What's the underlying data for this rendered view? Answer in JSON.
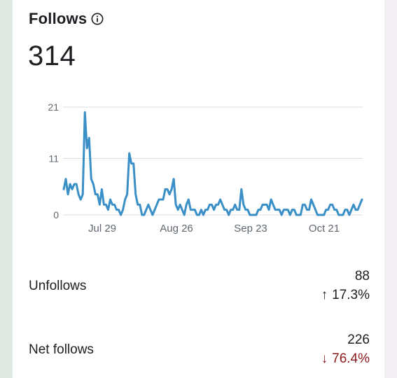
{
  "follows": {
    "title": "Follows",
    "total": "314"
  },
  "stats": [
    {
      "label": "Unfollows",
      "value": "88",
      "change": "17.3%",
      "direction": "up",
      "arrow": "↑"
    },
    {
      "label": "Net follows",
      "value": "226",
      "change": "76.4%",
      "direction": "down",
      "arrow": "↓"
    }
  ],
  "colors": {
    "line": "#3a8fc7",
    "grid": "#dadde1",
    "negative": "#8b1a1a"
  },
  "chart_data": {
    "type": "line",
    "x_tick_labels": [
      "Jul 29",
      "Aug 26",
      "Sep 23",
      "Oct 21"
    ],
    "y_tick_labels": [
      "21",
      "11",
      "0"
    ],
    "y_ticks": [
      21,
      11,
      0
    ],
    "ylim": [
      0,
      21
    ],
    "grid": true,
    "series": [
      {
        "values": [
          5,
          7,
          4,
          6,
          5,
          6,
          6,
          4,
          3,
          4,
          20,
          13,
          15,
          7,
          6,
          4,
          4,
          2,
          5,
          2,
          2,
          1,
          3,
          2,
          2,
          1,
          1,
          0,
          1,
          3,
          4,
          12,
          10,
          10,
          4,
          2,
          2,
          0,
          0,
          1,
          2,
          1,
          0,
          1,
          2,
          3,
          3,
          3,
          5,
          5,
          4,
          5,
          7,
          2,
          1,
          2,
          1,
          0,
          2,
          3,
          1,
          1,
          1,
          0,
          0,
          1,
          0,
          1,
          1,
          2,
          2,
          1,
          2,
          2,
          3,
          2,
          1,
          1,
          0,
          1,
          1,
          2,
          1,
          1,
          5,
          2,
          1,
          1,
          0,
          0,
          0,
          0,
          1,
          1,
          2,
          2,
          2,
          1,
          3,
          2,
          1,
          1,
          1,
          0,
          1,
          1,
          1,
          0,
          1,
          1,
          0,
          0,
          0,
          2,
          2,
          1,
          1,
          3,
          2,
          1,
          0,
          0,
          0,
          0,
          1,
          1,
          2,
          2,
          1,
          1,
          0,
          0,
          0,
          1,
          1,
          0,
          1,
          2,
          1,
          1,
          2,
          3
        ]
      }
    ]
  }
}
